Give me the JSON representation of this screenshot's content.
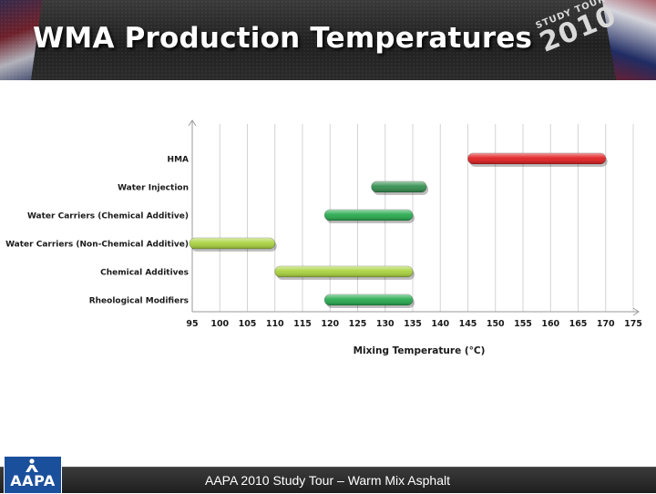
{
  "header": {
    "title": "WMA Production Temperatures",
    "badge_top": "STUDY TOUR",
    "badge_year": "2010"
  },
  "footer": {
    "text": "AAPA 2010 Study Tour – Warm Mix Asphalt",
    "logo_text": "AAPA"
  },
  "colors": {
    "header_bg": "#2a2a2a",
    "red_bar": "#e0191b",
    "dark_green_bar": "#2e8b4a",
    "green_bar": "#22a84a",
    "yellow_green_bar": "#a8d23a",
    "logo_blue": "#1a4f9c"
  },
  "chart_data": {
    "type": "bar",
    "orientation": "horizontal-range",
    "xlabel": "Mixing Temperature (°C)",
    "ylabel": "",
    "xlim": [
      95,
      175
    ],
    "xticks": [
      95,
      100,
      105,
      110,
      115,
      120,
      125,
      130,
      135,
      140,
      145,
      150,
      155,
      160,
      165,
      170,
      175
    ],
    "grid": "vertical",
    "categories": [
      "HMA",
      "Water Injection",
      "Water Carriers (Chemical Additive)",
      "Water Carriers (Non-Chemical Additive)",
      "Chemical Additives",
      "Rheological Modifiers"
    ],
    "ranges": [
      [
        145,
        170
      ],
      [
        127.5,
        137.5
      ],
      [
        119,
        135
      ],
      [
        94.5,
        110
      ],
      [
        110,
        135
      ],
      [
        119,
        135
      ]
    ],
    "bar_colors": [
      "#e0191b",
      "#2e8b4a",
      "#22a84a",
      "#a8d23a",
      "#a8d23a",
      "#22a84a"
    ]
  }
}
